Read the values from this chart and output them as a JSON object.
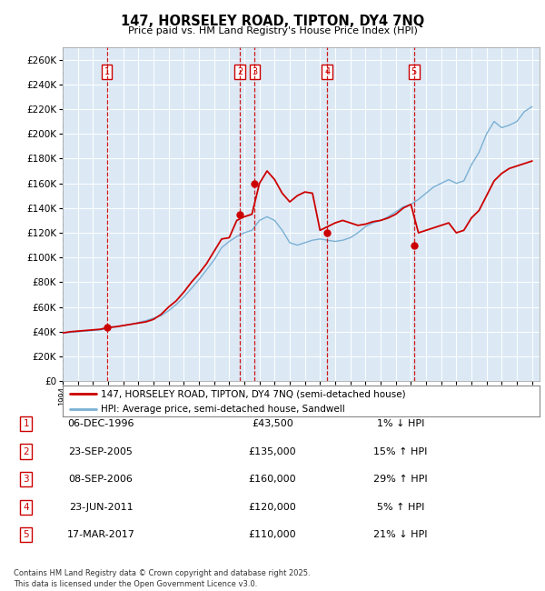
{
  "title": "147, HORSELEY ROAD, TIPTON, DY4 7NQ",
  "subtitle": "Price paid vs. HM Land Registry's House Price Index (HPI)",
  "hpi_color": "#7ab0d4",
  "price_color": "#cc0000",
  "ylim": [
    0,
    270000
  ],
  "ytick_step": 20000,
  "sales": [
    {
      "num": 1,
      "date_x": 1996.92,
      "price": 43500,
      "label": "1"
    },
    {
      "num": 2,
      "date_x": 2005.72,
      "price": 135000,
      "label": "2"
    },
    {
      "num": 3,
      "date_x": 2006.68,
      "price": 160000,
      "label": "3"
    },
    {
      "num": 4,
      "date_x": 2011.47,
      "price": 120000,
      "label": "4"
    },
    {
      "num": 5,
      "date_x": 2017.2,
      "price": 110000,
      "label": "5"
    }
  ],
  "table_rows": [
    {
      "num": "1",
      "date": "06-DEC-1996",
      "price": "£43,500",
      "hpi": "1% ↓ HPI"
    },
    {
      "num": "2",
      "date": "23-SEP-2005",
      "price": "£135,000",
      "hpi": "15% ↑ HPI"
    },
    {
      "num": "3",
      "date": "08-SEP-2006",
      "price": "£160,000",
      "hpi": "29% ↑ HPI"
    },
    {
      "num": "4",
      "date": "23-JUN-2011",
      "price": "£120,000",
      "hpi": "5% ↑ HPI"
    },
    {
      "num": "5",
      "date": "17-MAR-2017",
      "price": "£110,000",
      "hpi": "21% ↓ HPI"
    }
  ],
  "legend_line1": "147, HORSELEY ROAD, TIPTON, DY4 7NQ (semi-detached house)",
  "legend_line2": "HPI: Average price, semi-detached house, Sandwell",
  "footnote": "Contains HM Land Registry data © Crown copyright and database right 2025.\nThis data is licensed under the Open Government Licence v3.0.",
  "xmin": 1994,
  "xmax": 2025.5
}
